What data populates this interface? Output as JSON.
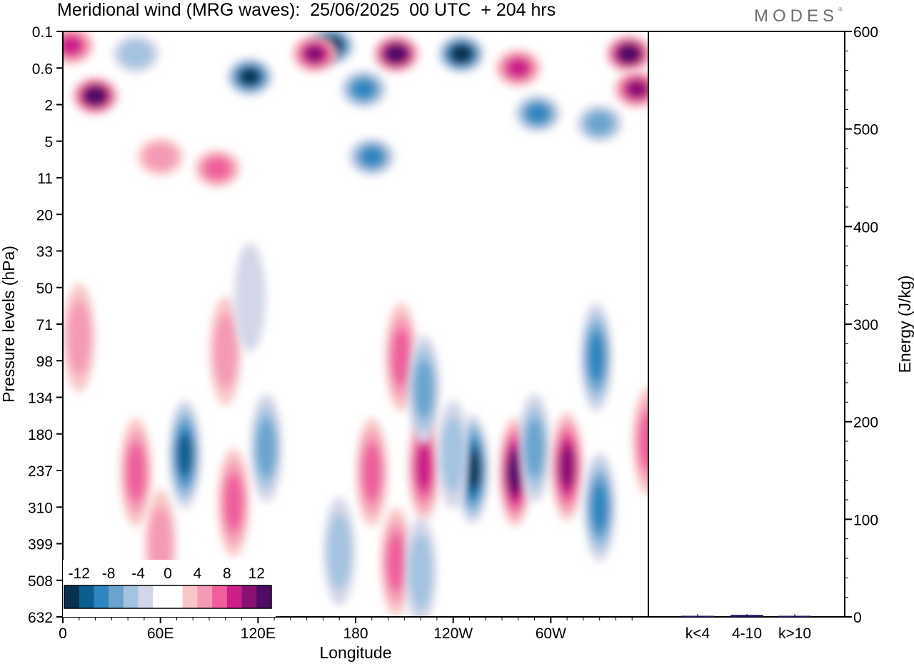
{
  "title": "Meridional wind (MRG waves):  25/06/2025  00 UTC  + 204 hrs",
  "brand": "MODES",
  "brand_mark": "®",
  "chart_data": [
    {
      "type": "heatmap",
      "title": "Meridional wind (MRG waves):  25/06/2025  00 UTC  + 204 hrs",
      "xlabel": "Longitude",
      "ylabel": "Pressure levels (hPa)",
      "x_ticks": [
        "0",
        "60E",
        "120E",
        "180",
        "120W",
        "60W"
      ],
      "y_ticks": [
        "0.1",
        "0.6",
        "2",
        "5",
        "11",
        "20",
        "33",
        "50",
        "71",
        "98",
        "134",
        "180",
        "237",
        "310",
        "399",
        "508",
        "632"
      ],
      "colorbar": {
        "labels": [
          "-12",
          "-8",
          "-4",
          "0",
          "4",
          "8",
          "12"
        ],
        "colors": [
          "#08304f",
          "#0c5e8e",
          "#2d86bf",
          "#6aa4ce",
          "#a3c3e0",
          "#d3d6e8",
          "#ffffff",
          "#ffffff",
          "#f8c6c6",
          "#f59ab6",
          "#ee5f9c",
          "#cc1f88",
          "#8a1174",
          "#4f0b66"
        ]
      },
      "features": [
        {
          "lon": 20,
          "lev": 1.5,
          "value": 14
        },
        {
          "lon": 5,
          "lev": 0.2,
          "value": 8
        },
        {
          "lon": 45,
          "lev": 0.3,
          "value": -4
        },
        {
          "lon": 115,
          "lev": 0.8,
          "value": -12
        },
        {
          "lon": 165,
          "lev": 0.2,
          "value": -14
        },
        {
          "lon": 155,
          "lev": 0.3,
          "value": 10
        },
        {
          "lon": 205,
          "lev": 0.3,
          "value": 14
        },
        {
          "lon": 245,
          "lev": 0.3,
          "value": -14
        },
        {
          "lon": 280,
          "lev": 0.6,
          "value": 8
        },
        {
          "lon": 348,
          "lev": 0.3,
          "value": 14
        },
        {
          "lon": 353,
          "lev": 1.2,
          "value": 10
        },
        {
          "lon": 185,
          "lev": 1.2,
          "value": -8
        },
        {
          "lon": 190,
          "lev": 7,
          "value": -8
        },
        {
          "lon": 95,
          "lev": 9,
          "value": 6
        },
        {
          "lon": 292,
          "lev": 2.5,
          "value": -8
        },
        {
          "lon": 330,
          "lev": 3.2,
          "value": -6
        },
        {
          "lon": 60,
          "lev": 7,
          "value": 5
        },
        {
          "lon": 75,
          "lev": 210,
          "value": -11
        },
        {
          "lon": 45,
          "lev": 240,
          "value": 7
        },
        {
          "lon": 125,
          "lev": 200,
          "value": -6
        },
        {
          "lon": 190,
          "lev": 240,
          "value": 7
        },
        {
          "lon": 222,
          "lev": 230,
          "value": 9
        },
        {
          "lon": 252,
          "lev": 235,
          "value": -12
        },
        {
          "lon": 278,
          "lev": 240,
          "value": 12
        },
        {
          "lon": 290,
          "lev": 200,
          "value": -6
        },
        {
          "lon": 310,
          "lev": 230,
          "value": 10
        },
        {
          "lon": 330,
          "lev": 310,
          "value": -8
        },
        {
          "lon": 360,
          "lev": 190,
          "value": 6
        },
        {
          "lon": 208,
          "lev": 95,
          "value": 6
        },
        {
          "lon": 222,
          "lev": 125,
          "value": -6
        },
        {
          "lon": 328,
          "lev": 95,
          "value": -8
        },
        {
          "lon": 100,
          "lev": 90,
          "value": 4
        },
        {
          "lon": 10,
          "lev": 80,
          "value": 5
        },
        {
          "lon": 115,
          "lev": 55,
          "value": -3
        },
        {
          "lon": 240,
          "lev": 210,
          "value": -5
        },
        {
          "lon": 60,
          "lev": 400,
          "value": 4
        },
        {
          "lon": 105,
          "lev": 300,
          "value": 6
        },
        {
          "lon": 170,
          "lev": 420,
          "value": -5
        },
        {
          "lon": 205,
          "lev": 450,
          "value": 7
        },
        {
          "lon": 220,
          "lev": 480,
          "value": -4
        }
      ]
    },
    {
      "type": "bar",
      "ylabel": "Energy (J/kg)",
      "ylim": [
        0,
        600
      ],
      "y_ticks": [
        "0",
        "100",
        "200",
        "300",
        "400",
        "500",
        "600"
      ],
      "categories": [
        "k<4",
        "4-10",
        "k>10"
      ],
      "values": [
        0,
        2,
        0
      ],
      "bar_color": "#151560"
    }
  ]
}
